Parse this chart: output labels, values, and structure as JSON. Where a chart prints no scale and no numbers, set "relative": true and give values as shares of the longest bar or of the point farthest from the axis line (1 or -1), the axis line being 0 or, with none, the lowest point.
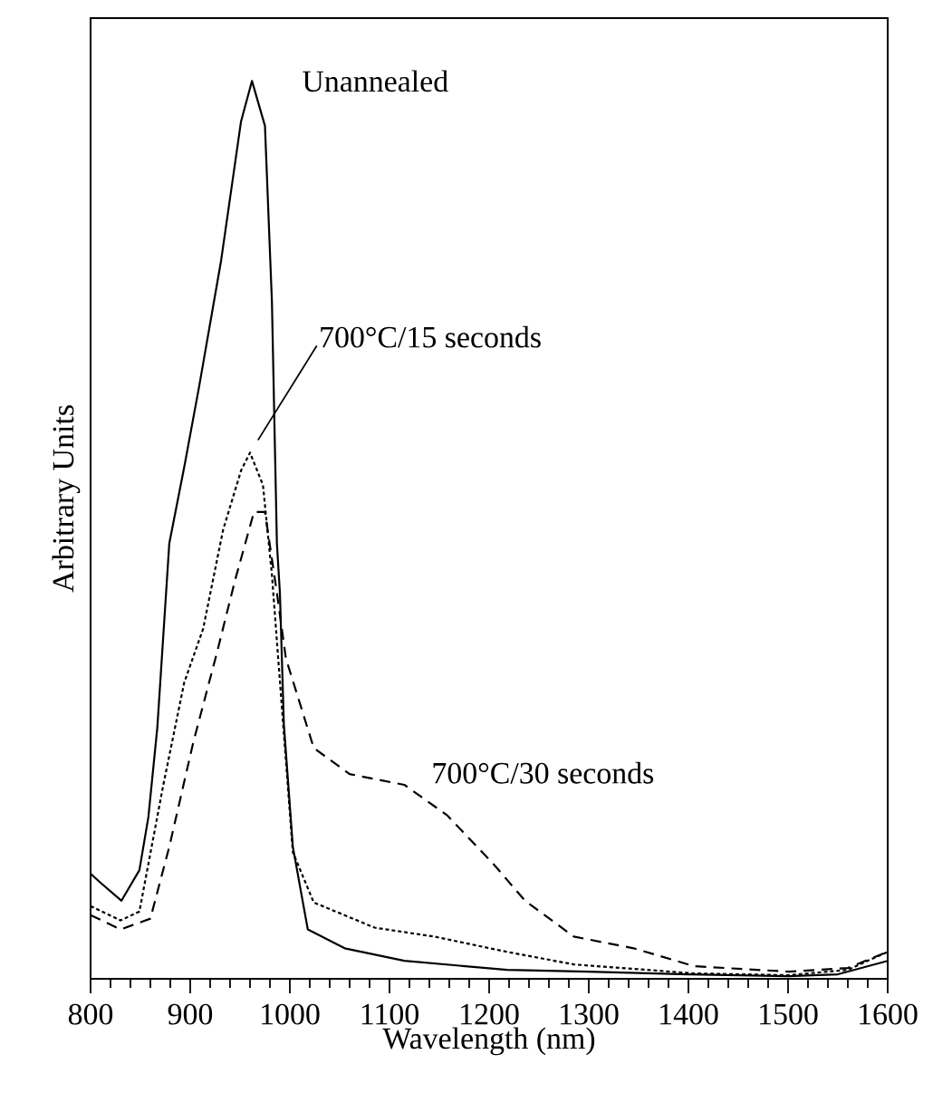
{
  "chart_data": {
    "type": "line",
    "relative": true,
    "xlabel": "Wavelength (nm)",
    "ylabel": "Arbitrary Units",
    "xlim": [
      800,
      1600
    ],
    "xticks": [
      800,
      900,
      1000,
      1100,
      1200,
      1300,
      1400,
      1500,
      1600
    ],
    "grid": false,
    "marker": "none",
    "series": [
      {
        "name": "Unannealed",
        "color": "#000000",
        "line_style": "solid",
        "x": [
          800,
          810,
          831,
          849,
          858,
          867,
          879,
          894,
          909,
          931,
          951,
          962,
          975,
          982,
          987,
          990,
          994,
          1003,
          1018,
          1055,
          1115,
          1218,
          1300,
          1400,
          1500,
          1550,
          1600
        ],
        "values": [
          0.117,
          0.107,
          0.087,
          0.121,
          0.18,
          0.28,
          0.485,
          0.57,
          0.66,
          0.8,
          0.955,
          1,
          0.95,
          0.754,
          0.485,
          0.43,
          0.283,
          0.147,
          0.055,
          0.034,
          0.02,
          0.01,
          0.008,
          0.005,
          0.003,
          0.005,
          0.02
        ]
      },
      {
        "name": "700°C/15 seconds",
        "color": "#000000",
        "line_style": "dotted",
        "x": [
          800,
          830,
          849,
          873,
          894,
          913,
          933,
          951,
          960,
          973,
          982,
          991,
          1003,
          1024,
          1085,
          1145,
          1218,
          1285,
          1406,
          1500,
          1560,
          1600
        ],
        "values": [
          0.081,
          0.065,
          0.075,
          0.216,
          0.33,
          0.39,
          0.5,
          0.566,
          0.586,
          0.55,
          0.45,
          0.317,
          0.141,
          0.085,
          0.057,
          0.047,
          0.03,
          0.016,
          0.006,
          0.004,
          0.01,
          0.03
        ]
      },
      {
        "name": "700°C/30 seconds",
        "color": "#000000",
        "line_style": "dashed",
        "x": [
          800,
          830,
          860,
          879,
          903,
          927,
          945,
          964,
          975,
          987,
          996,
          1024,
          1060,
          1115,
          1158,
          1205,
          1236,
          1285,
          1345,
          1406,
          1500,
          1560,
          1600
        ],
        "values": [
          0.071,
          0.055,
          0.067,
          0.147,
          0.263,
          0.364,
          0.444,
          0.52,
          0.52,
          0.43,
          0.357,
          0.257,
          0.228,
          0.216,
          0.182,
          0.127,
          0.087,
          0.047,
          0.034,
          0.014,
          0.008,
          0.012,
          0.03
        ]
      }
    ]
  }
}
